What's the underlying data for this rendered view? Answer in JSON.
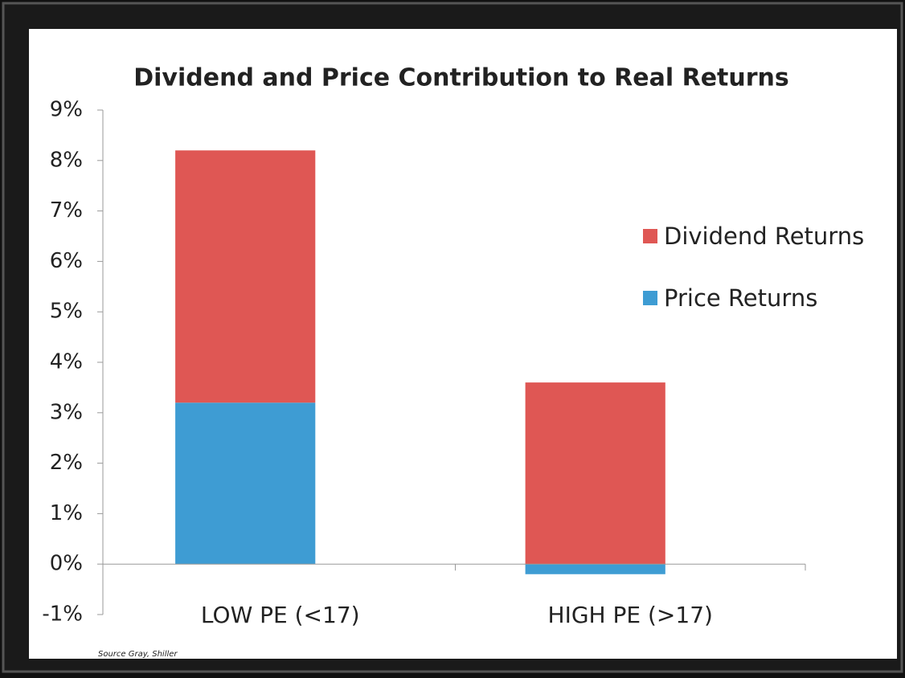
{
  "chart_data": {
    "type": "stacked_bar",
    "title": "Dividend and Price Contribution to Real Returns",
    "categories": [
      "LOW PE (<17)",
      "HIGH PE (>17)"
    ],
    "series": [
      {
        "name": "Price Returns",
        "color": "#3e9cd3",
        "values": [
          3.2,
          -0.2
        ]
      },
      {
        "name": "Dividend Returns",
        "color": "#df5754",
        "values": [
          5.0,
          3.6
        ]
      }
    ],
    "ylim": [
      -1,
      9
    ],
    "yticks": [
      {
        "value": -1,
        "label": "-1%"
      },
      {
        "value": 0,
        "label": "0%"
      },
      {
        "value": 1,
        "label": "1%"
      },
      {
        "value": 2,
        "label": "2%"
      },
      {
        "value": 3,
        "label": "3%"
      },
      {
        "value": 4,
        "label": "4%"
      },
      {
        "value": 5,
        "label": "5%"
      },
      {
        "value": 6,
        "label": "6%"
      },
      {
        "value": 7,
        "label": "7%"
      },
      {
        "value": 8,
        "label": "8%"
      },
      {
        "value": 9,
        "label": "9%"
      }
    ],
    "legend": "right",
    "source": "Source  Gray, Shiller"
  }
}
